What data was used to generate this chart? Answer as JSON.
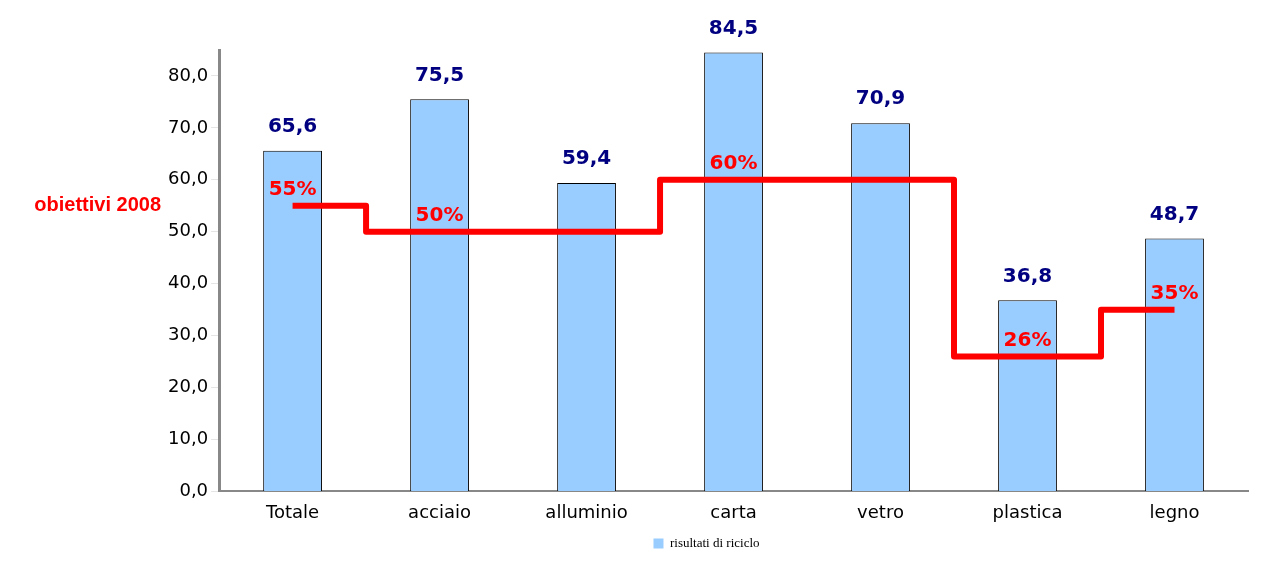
{
  "chart_data": {
    "type": "bar",
    "categories": [
      "Totale",
      "acciaio",
      "alluminio",
      "carta",
      "vetro",
      "plastica",
      "legno"
    ],
    "series": [
      {
        "name": "risultati di riciclo",
        "color": "#99ccff",
        "values": [
          65.6,
          75.5,
          59.4,
          84.5,
          70.9,
          36.8,
          48.7
        ],
        "value_labels": [
          "65,6",
          "75,5",
          "59,4",
          "84,5",
          "70,9",
          "36,8",
          "48,7"
        ]
      },
      {
        "name": "obiettivi 2008",
        "type": "step",
        "color": "#ff0000",
        "values": [
          55,
          50,
          50,
          60,
          60,
          26,
          35
        ],
        "value_labels": [
          "55%",
          "50%",
          null,
          "60%",
          null,
          "26%",
          "35%"
        ]
      }
    ],
    "ylim": [
      0,
      85
    ],
    "yticks": [
      {
        "value": 0,
        "label": "0,0"
      },
      {
        "value": 10,
        "label": "10,0"
      },
      {
        "value": 20,
        "label": "20,0"
      },
      {
        "value": 30,
        "label": "30,0"
      },
      {
        "value": 40,
        "label": "40,0"
      },
      {
        "value": 50,
        "label": "50,0"
      },
      {
        "value": 60,
        "label": "60,0"
      },
      {
        "value": 70,
        "label": "70,0"
      },
      {
        "value": 80,
        "label": "80,0"
      }
    ],
    "grid": false,
    "legend": "bottom"
  }
}
